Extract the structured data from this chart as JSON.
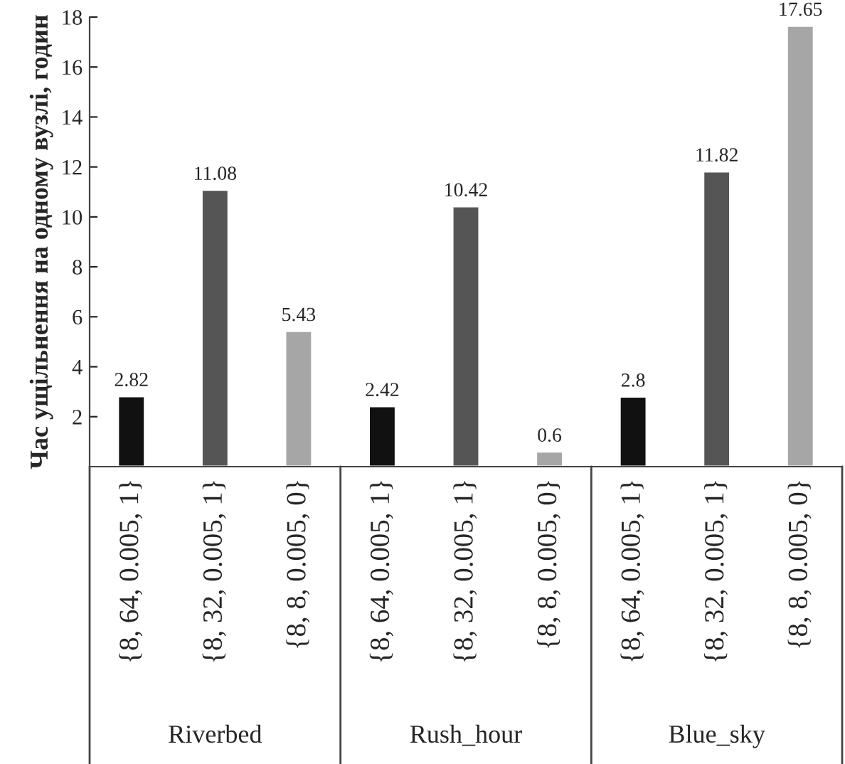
{
  "chart_data": {
    "type": "bar",
    "ylabel": "Час ущільнення на одному вузлі, годин",
    "categories": [
      "{8, 64, 0.005, 1}",
      "{8, 32, 0.005, 1}",
      "{8, 8, 0.005, 0}",
      "{8, 64, 0.005, 1}",
      "{8, 32, 0.005, 1}",
      "{8, 8, 0.005, 0}",
      "{8, 64, 0.005, 1}",
      "{8, 32, 0.005, 1}",
      "{8, 8, 0.005, 0}"
    ],
    "values": [
      2.82,
      11.08,
      5.43,
      2.42,
      10.42,
      0.6,
      2.8,
      11.82,
      17.65
    ],
    "colors": [
      "#111111",
      "#555555",
      "#a6a6a6",
      "#111111",
      "#555555",
      "#a6a6a6",
      "#111111",
      "#555555",
      "#a6a6a6"
    ],
    "ylim": [
      0,
      18
    ],
    "yticks": [
      2,
      4,
      6,
      8,
      10,
      12,
      14,
      16,
      18
    ],
    "grid": false,
    "data_labels": true,
    "annotations": [
      "Riverbed",
      "Rush_hour",
      "Blue_sky"
    ]
  }
}
